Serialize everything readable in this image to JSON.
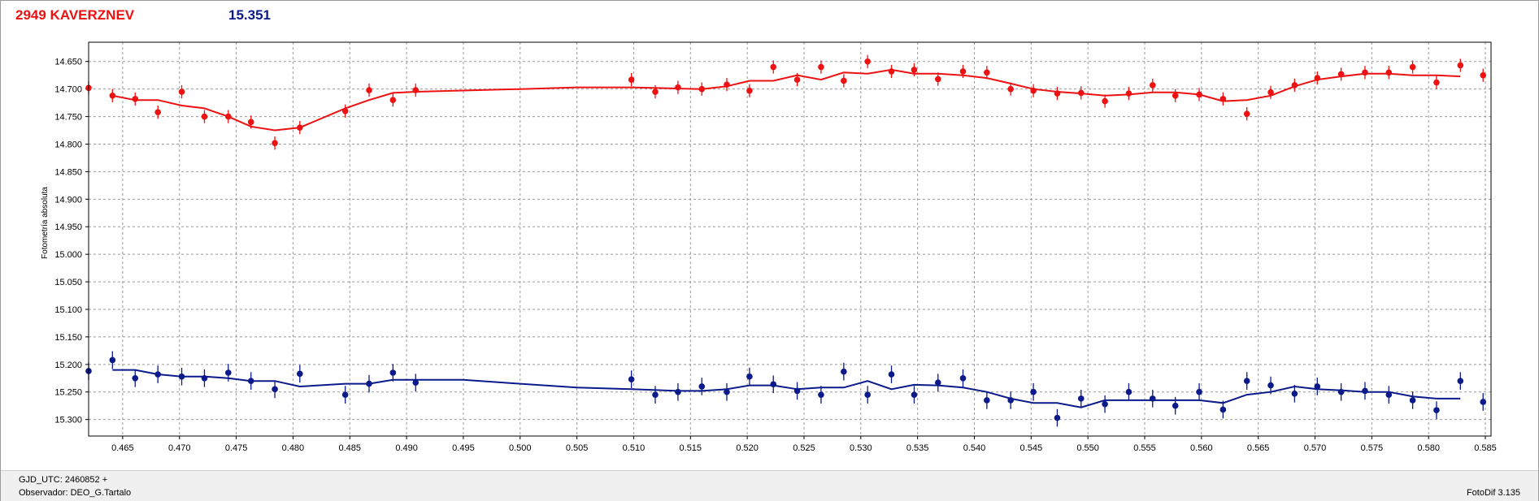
{
  "header": {
    "asteroid_label": "2949 KAVERZNEV",
    "comparison_value": "15.351",
    "color_red": "#ee1111",
    "color_blue": "#0a1a8a"
  },
  "footer": {
    "gjd_label": "GJD_UTC: 2460852 +",
    "observer_label": "Observador: DEO_G.Tartalo",
    "software_label": "FotoDif 3.135"
  },
  "chart_data": {
    "type": "scatter",
    "title": "",
    "xlabel": "",
    "ylabel": "Fotometría absoluta",
    "xlim": [
      0.462,
      0.5855
    ],
    "ylim": [
      14.615,
      15.33
    ],
    "y_inverted": true,
    "grid": true,
    "x_ticks": [
      "0.465",
      "0.470",
      "0.475",
      "0.480",
      "0.485",
      "0.490",
      "0.495",
      "0.500",
      "0.505",
      "0.510",
      "0.515",
      "0.520",
      "0.525",
      "0.530",
      "0.535",
      "0.540",
      "0.545",
      "0.550",
      "0.555",
      "0.560",
      "0.565",
      "0.570",
      "0.575",
      "0.580",
      "0.585"
    ],
    "y_ticks": [
      "14.650",
      "14.700",
      "14.750",
      "14.800",
      "14.850",
      "14.900",
      "14.950",
      "15.000",
      "15.050",
      "15.100",
      "15.150",
      "15.200",
      "15.250",
      "15.300"
    ],
    "series": [
      {
        "color": "#ee1111",
        "error": 0.012,
        "points": [
          [
            0.462,
            14.698
          ],
          [
            0.4641,
            14.712
          ],
          [
            0.4661,
            14.718
          ],
          [
            0.4681,
            14.742
          ],
          [
            0.4702,
            14.705
          ],
          [
            0.4722,
            14.75
          ],
          [
            0.4743,
            14.75
          ],
          [
            0.4763,
            14.76
          ],
          [
            0.4784,
            14.798
          ],
          [
            0.4806,
            14.77
          ],
          [
            0.4846,
            14.74
          ],
          [
            0.4867,
            14.702
          ],
          [
            0.4888,
            14.72
          ],
          [
            0.4908,
            14.702
          ],
          [
            0.5098,
            14.683
          ],
          [
            0.5119,
            14.705
          ],
          [
            0.5139,
            14.697
          ],
          [
            0.516,
            14.7
          ],
          [
            0.5182,
            14.692
          ],
          [
            0.5202,
            14.703
          ],
          [
            0.5223,
            14.66
          ],
          [
            0.5244,
            14.683
          ],
          [
            0.5265,
            14.66
          ],
          [
            0.5285,
            14.685
          ],
          [
            0.5306,
            14.65
          ],
          [
            0.5327,
            14.668
          ],
          [
            0.5347,
            14.665
          ],
          [
            0.5368,
            14.682
          ],
          [
            0.539,
            14.668
          ],
          [
            0.5411,
            14.67
          ],
          [
            0.5432,
            14.7
          ],
          [
            0.5452,
            14.703
          ],
          [
            0.5473,
            14.708
          ],
          [
            0.5494,
            14.707
          ],
          [
            0.5515,
            14.722
          ],
          [
            0.5536,
            14.708
          ],
          [
            0.5557,
            14.693
          ],
          [
            0.5577,
            14.712
          ],
          [
            0.5598,
            14.71
          ],
          [
            0.5619,
            14.718
          ],
          [
            0.564,
            14.745
          ],
          [
            0.5661,
            14.706
          ],
          [
            0.5682,
            14.693
          ],
          [
            0.5702,
            14.68
          ],
          [
            0.5723,
            14.673
          ],
          [
            0.5744,
            14.67
          ],
          [
            0.5765,
            14.67
          ],
          [
            0.5786,
            14.66
          ],
          [
            0.5807,
            14.688
          ],
          [
            0.5828,
            14.657
          ],
          [
            0.5848,
            14.675
          ]
        ],
        "fit": [
          [
            0.4641,
            14.712
          ],
          [
            0.4661,
            14.72
          ],
          [
            0.4681,
            14.72
          ],
          [
            0.4702,
            14.73
          ],
          [
            0.4722,
            14.735
          ],
          [
            0.4743,
            14.75
          ],
          [
            0.4763,
            14.768
          ],
          [
            0.4784,
            14.775
          ],
          [
            0.4806,
            14.77
          ],
          [
            0.4846,
            14.735
          ],
          [
            0.4867,
            14.72
          ],
          [
            0.4888,
            14.707
          ],
          [
            0.4908,
            14.705
          ],
          [
            0.5,
            14.7
          ],
          [
            0.505,
            14.697
          ],
          [
            0.5098,
            14.697
          ],
          [
            0.516,
            14.7
          ],
          [
            0.5182,
            14.695
          ],
          [
            0.5202,
            14.685
          ],
          [
            0.5223,
            14.685
          ],
          [
            0.5244,
            14.675
          ],
          [
            0.5265,
            14.683
          ],
          [
            0.5285,
            14.67
          ],
          [
            0.5306,
            14.672
          ],
          [
            0.5327,
            14.665
          ],
          [
            0.5347,
            14.672
          ],
          [
            0.5368,
            14.672
          ],
          [
            0.539,
            14.675
          ],
          [
            0.5411,
            14.68
          ],
          [
            0.5432,
            14.69
          ],
          [
            0.5452,
            14.7
          ],
          [
            0.5473,
            14.705
          ],
          [
            0.5494,
            14.708
          ],
          [
            0.5515,
            14.712
          ],
          [
            0.5536,
            14.71
          ],
          [
            0.5557,
            14.706
          ],
          [
            0.5577,
            14.706
          ],
          [
            0.5598,
            14.71
          ],
          [
            0.5619,
            14.722
          ],
          [
            0.564,
            14.72
          ],
          [
            0.5661,
            14.712
          ],
          [
            0.5682,
            14.695
          ],
          [
            0.5702,
            14.683
          ],
          [
            0.5723,
            14.677
          ],
          [
            0.5744,
            14.672
          ],
          [
            0.5765,
            14.672
          ],
          [
            0.5786,
            14.675
          ],
          [
            0.5807,
            14.675
          ],
          [
            0.5828,
            14.677
          ]
        ]
      },
      {
        "color": "#0a1a8a",
        "error": 0.016,
        "points": [
          [
            0.462,
            15.212
          ],
          [
            0.4641,
            15.192
          ],
          [
            0.4661,
            15.225
          ],
          [
            0.4681,
            15.218
          ],
          [
            0.4702,
            15.222
          ],
          [
            0.4722,
            15.225
          ],
          [
            0.4743,
            15.215
          ],
          [
            0.4763,
            15.23
          ],
          [
            0.4784,
            15.245
          ],
          [
            0.4806,
            15.217
          ],
          [
            0.4846,
            15.255
          ],
          [
            0.4867,
            15.235
          ],
          [
            0.4888,
            15.215
          ],
          [
            0.4908,
            15.233
          ],
          [
            0.5098,
            15.227
          ],
          [
            0.5119,
            15.255
          ],
          [
            0.5139,
            15.25
          ],
          [
            0.516,
            15.24
          ],
          [
            0.5182,
            15.25
          ],
          [
            0.5202,
            15.222
          ],
          [
            0.5223,
            15.236
          ],
          [
            0.5244,
            15.248
          ],
          [
            0.5265,
            15.255
          ],
          [
            0.5285,
            15.213
          ],
          [
            0.5306,
            15.255
          ],
          [
            0.5327,
            15.218
          ],
          [
            0.5347,
            15.255
          ],
          [
            0.5368,
            15.233
          ],
          [
            0.539,
            15.225
          ],
          [
            0.5411,
            15.265
          ],
          [
            0.5432,
            15.265
          ],
          [
            0.5452,
            15.25
          ],
          [
            0.5473,
            15.297
          ],
          [
            0.5494,
            15.262
          ],
          [
            0.5515,
            15.272
          ],
          [
            0.5536,
            15.25
          ],
          [
            0.5557,
            15.262
          ],
          [
            0.5577,
            15.275
          ],
          [
            0.5598,
            15.25
          ],
          [
            0.5619,
            15.282
          ],
          [
            0.564,
            15.23
          ],
          [
            0.5661,
            15.238
          ],
          [
            0.5682,
            15.253
          ],
          [
            0.5702,
            15.24
          ],
          [
            0.5723,
            15.25
          ],
          [
            0.5744,
            15.248
          ],
          [
            0.5765,
            15.255
          ],
          [
            0.5786,
            15.265
          ],
          [
            0.5807,
            15.283
          ],
          [
            0.5828,
            15.23
          ],
          [
            0.5848,
            15.268
          ]
        ],
        "fit": [
          [
            0.4641,
            15.21
          ],
          [
            0.4661,
            15.21
          ],
          [
            0.4681,
            15.218
          ],
          [
            0.4702,
            15.222
          ],
          [
            0.4722,
            15.222
          ],
          [
            0.4743,
            15.225
          ],
          [
            0.4763,
            15.23
          ],
          [
            0.4784,
            15.23
          ],
          [
            0.4806,
            15.24
          ],
          [
            0.4846,
            15.235
          ],
          [
            0.4867,
            15.235
          ],
          [
            0.4888,
            15.228
          ],
          [
            0.4908,
            15.228
          ],
          [
            0.495,
            15.228
          ],
          [
            0.5,
            15.235
          ],
          [
            0.505,
            15.242
          ],
          [
            0.5098,
            15.245
          ],
          [
            0.5139,
            15.248
          ],
          [
            0.516,
            15.248
          ],
          [
            0.5182,
            15.245
          ],
          [
            0.5202,
            15.238
          ],
          [
            0.5223,
            15.238
          ],
          [
            0.5244,
            15.245
          ],
          [
            0.5265,
            15.242
          ],
          [
            0.5285,
            15.242
          ],
          [
            0.5306,
            15.23
          ],
          [
            0.5327,
            15.245
          ],
          [
            0.5347,
            15.237
          ],
          [
            0.5368,
            15.238
          ],
          [
            0.539,
            15.242
          ],
          [
            0.5411,
            15.25
          ],
          [
            0.5432,
            15.262
          ],
          [
            0.5452,
            15.27
          ],
          [
            0.5473,
            15.27
          ],
          [
            0.5494,
            15.278
          ],
          [
            0.5515,
            15.265
          ],
          [
            0.5536,
            15.265
          ],
          [
            0.5557,
            15.265
          ],
          [
            0.5577,
            15.265
          ],
          [
            0.5598,
            15.265
          ],
          [
            0.5619,
            15.27
          ],
          [
            0.564,
            15.255
          ],
          [
            0.5661,
            15.25
          ],
          [
            0.5682,
            15.24
          ],
          [
            0.5702,
            15.245
          ],
          [
            0.5723,
            15.247
          ],
          [
            0.5744,
            15.25
          ],
          [
            0.5765,
            15.25
          ],
          [
            0.5786,
            15.258
          ],
          [
            0.5807,
            15.262
          ],
          [
            0.5828,
            15.262
          ]
        ]
      }
    ]
  }
}
